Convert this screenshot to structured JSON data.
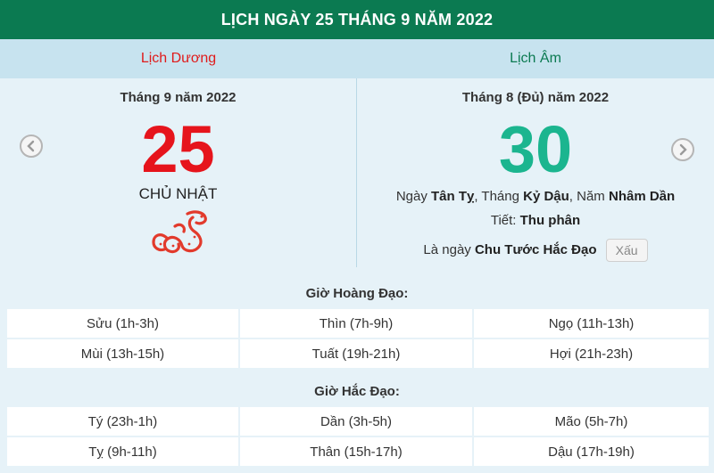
{
  "header": {
    "title": "LỊCH NGÀY 25 THÁNG 9 NĂM 2022"
  },
  "columns": {
    "solar": "Lịch Dương",
    "lunar": "Lịch Âm"
  },
  "solar": {
    "month_label": "Tháng 9 năm 2022",
    "day": "25",
    "weekday": "CHỦ NHẬT",
    "zodiac_icon": "snake-icon"
  },
  "lunar": {
    "month_label": "Tháng 8 (Đủ) năm 2022",
    "day": "30",
    "line1": {
      "p1": "Ngày ",
      "day_name": "Tân Tỵ",
      "p2": ", Tháng ",
      "month_name": "Kỷ Dậu",
      "p3": ", Năm ",
      "year_name": "Nhâm Dần"
    },
    "line2": {
      "p1": "Tiết: ",
      "term": "Thu phân"
    },
    "line3": {
      "p1": "Là ngày ",
      "day_type": "Chu Tước Hắc Đạo",
      "badge": "Xấu"
    }
  },
  "good_hours": {
    "title": "Giờ Hoàng Đạo:",
    "items": [
      "Sửu (1h-3h)",
      "Thìn (7h-9h)",
      "Ngọ (11h-13h)",
      "Mùi (13h-15h)",
      "Tuất (19h-21h)",
      "Hợi (21h-23h)"
    ]
  },
  "bad_hours": {
    "title": "Giờ Hắc Đạo:",
    "items": [
      "Tý (23h-1h)",
      "Dần (3h-5h)",
      "Mão (5h-7h)",
      "Tỵ (9h-11h)",
      "Thân (15h-17h)",
      "Dậu (17h-19h)"
    ]
  },
  "colors": {
    "header_bg": "#0b7a51",
    "solar_red": "#e6141c",
    "lunar_green": "#1bb58f"
  }
}
